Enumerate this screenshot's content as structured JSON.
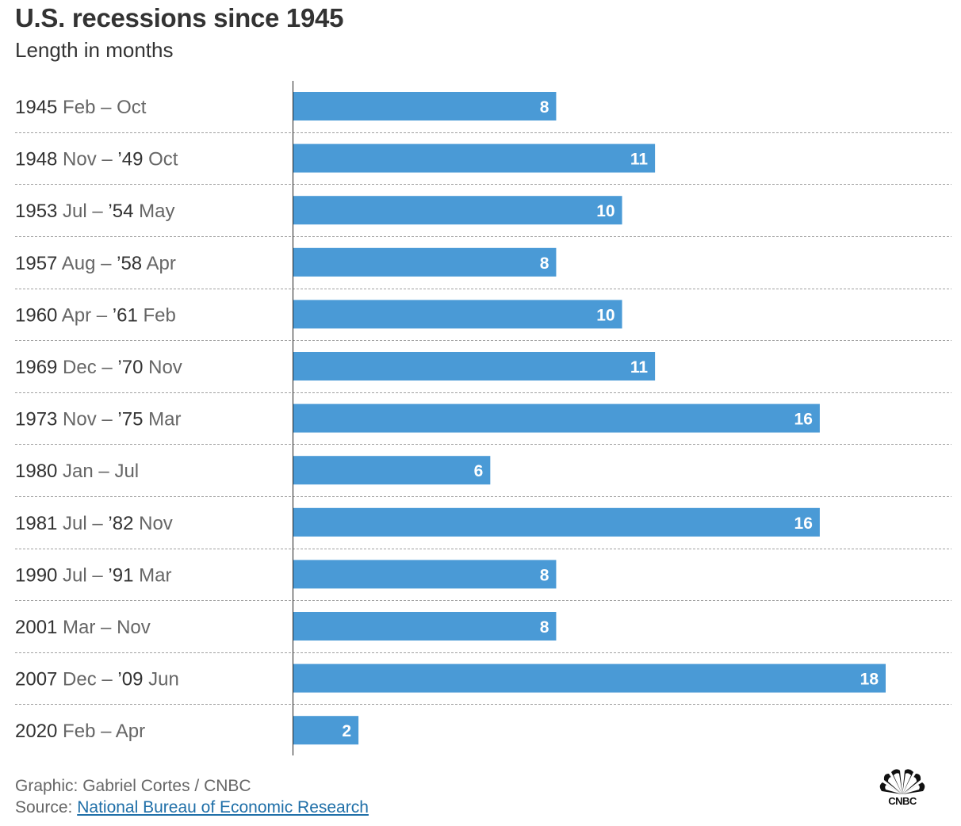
{
  "header": {
    "title": "U.S. recessions since 1945",
    "subtitle": "Length in months"
  },
  "footer": {
    "credit": "Graphic: Gabriel Cortes / CNBC",
    "source_prefix": "Source: ",
    "source_link": "National Bureau of Economic Research"
  },
  "logo": {
    "text": "CNBC"
  },
  "colors": {
    "bar": "#4a9ad6",
    "year_text": "#333333",
    "month_text": "#666666",
    "bar_label": "#ffffff",
    "gridline": "#a0a0a0",
    "axis": "#222222"
  },
  "chart_data": {
    "type": "bar",
    "orientation": "horizontal",
    "title": "U.S. recessions since 1945",
    "subtitle": "Length in months",
    "xlabel": "",
    "ylabel": "",
    "xlim": [
      0,
      18
    ],
    "grid": false,
    "series": [
      {
        "name": "Length in months",
        "values": [
          8,
          11,
          10,
          8,
          10,
          11,
          16,
          6,
          16,
          8,
          8,
          18,
          2
        ]
      }
    ],
    "categories": [
      [
        {
          "t": "1945",
          "y": true
        },
        {
          "t": " Feb – Oct",
          "y": false
        }
      ],
      [
        {
          "t": "1948",
          "y": true
        },
        {
          "t": " Nov – ",
          "y": false
        },
        {
          "t": "’49",
          "y": true
        },
        {
          "t": " Oct",
          "y": false
        }
      ],
      [
        {
          "t": "1953",
          "y": true
        },
        {
          "t": " Jul – ",
          "y": false
        },
        {
          "t": "’54",
          "y": true
        },
        {
          "t": " May",
          "y": false
        }
      ],
      [
        {
          "t": "1957",
          "y": true
        },
        {
          "t": " Aug – ",
          "y": false
        },
        {
          "t": "’58",
          "y": true
        },
        {
          "t": " Apr",
          "y": false
        }
      ],
      [
        {
          "t": "1960",
          "y": true
        },
        {
          "t": " Apr – ",
          "y": false
        },
        {
          "t": "’61",
          "y": true
        },
        {
          "t": " Feb",
          "y": false
        }
      ],
      [
        {
          "t": "1969",
          "y": true
        },
        {
          "t": " Dec – ",
          "y": false
        },
        {
          "t": "’70",
          "y": true
        },
        {
          "t": " Nov",
          "y": false
        }
      ],
      [
        {
          "t": "1973",
          "y": true
        },
        {
          "t": " Nov – ",
          "y": false
        },
        {
          "t": "’75",
          "y": true
        },
        {
          "t": " Mar",
          "y": false
        }
      ],
      [
        {
          "t": "1980",
          "y": true
        },
        {
          "t": " Jan – Jul",
          "y": false
        }
      ],
      [
        {
          "t": "1981",
          "y": true
        },
        {
          "t": " Jul – ",
          "y": false
        },
        {
          "t": "’82",
          "y": true
        },
        {
          "t": " Nov",
          "y": false
        }
      ],
      [
        {
          "t": "1990",
          "y": true
        },
        {
          "t": " Jul – ",
          "y": false
        },
        {
          "t": "’91",
          "y": true
        },
        {
          "t": " Mar",
          "y": false
        }
      ],
      [
        {
          "t": "2001",
          "y": true
        },
        {
          "t": " Mar – Nov",
          "y": false
        }
      ],
      [
        {
          "t": "2007",
          "y": true
        },
        {
          "t": " Dec – ",
          "y": false
        },
        {
          "t": "’09",
          "y": true
        },
        {
          "t": " Jun",
          "y": false
        }
      ],
      [
        {
          "t": "2020",
          "y": true
        },
        {
          "t": " Feb – Apr",
          "y": false
        }
      ]
    ]
  }
}
